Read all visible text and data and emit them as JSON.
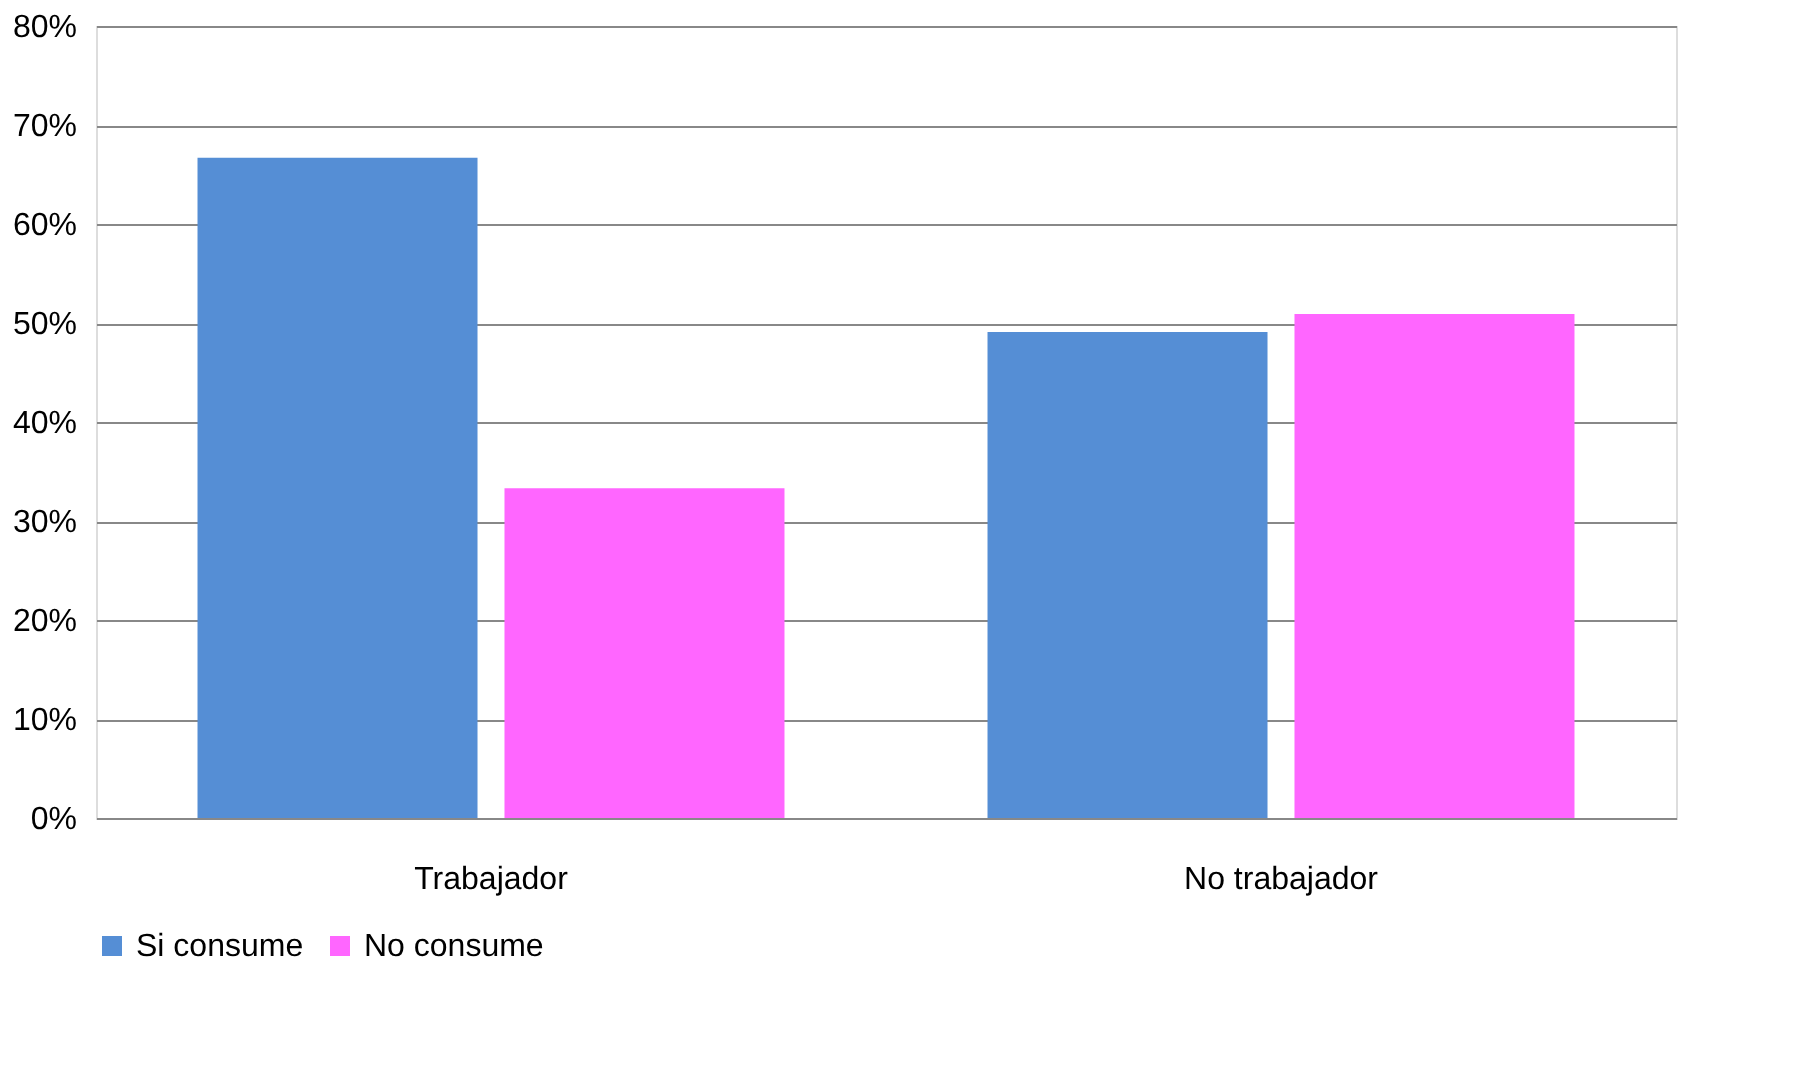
{
  "chart_data": {
    "type": "bar",
    "categories": [
      "Trabajador",
      "No trabajador"
    ],
    "series": [
      {
        "name": "Si consume",
        "color": "#558ed5",
        "values": [
          66.7,
          49.1
        ]
      },
      {
        "name": "No consume",
        "color": "#ff66ff",
        "values": [
          33.3,
          50.9
        ]
      }
    ],
    "ylim": [
      0,
      80
    ],
    "yticks": [
      {
        "value": 0,
        "label": "0%"
      },
      {
        "value": 10,
        "label": "10%"
      },
      {
        "value": 20,
        "label": "20%"
      },
      {
        "value": 30,
        "label": "30%"
      },
      {
        "value": 40,
        "label": "40%"
      },
      {
        "value": 50,
        "label": "50%"
      },
      {
        "value": 60,
        "label": "60%"
      },
      {
        "value": 70,
        "label": "70%"
      },
      {
        "value": 80,
        "label": "80%"
      }
    ],
    "grid": "y",
    "legend": "bottom"
  }
}
